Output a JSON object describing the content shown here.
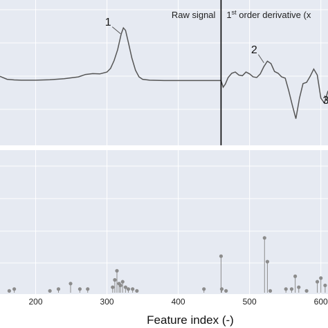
{
  "chart_data": [
    {
      "type": "line",
      "title": "",
      "xlabel": "",
      "ylabel": "",
      "xlim": [
        150,
        610
      ],
      "grid": true,
      "regions": [
        {
          "name": "raw",
          "label": "Raw signal",
          "x_range": [
            150,
            460
          ]
        },
        {
          "name": "derivative",
          "label_prefix": "1",
          "label_sup": "st",
          "label_suffix": " order derivative (x",
          "x_range": [
            460,
            610
          ]
        }
      ],
      "divider_x": 460,
      "series": [
        {
          "x": [
            150,
            160,
            170,
            180,
            200,
            220,
            240,
            260,
            270,
            280,
            290,
            300,
            305,
            310,
            315,
            320,
            323,
            326,
            330,
            335,
            340,
            345,
            350,
            360,
            380,
            400,
            420,
            440,
            460,
            463,
            466,
            470,
            475,
            480,
            485,
            490,
            495,
            500,
            505,
            510,
            515,
            520,
            525,
            530,
            535,
            540,
            545,
            550,
            555,
            560,
            565,
            570,
            575,
            580,
            585,
            590,
            595,
            600,
            605,
            610
          ],
          "y": [
            0.2,
            -0.05,
            -0.1,
            -0.12,
            -0.12,
            -0.08,
            0.0,
            0.15,
            0.35,
            0.42,
            0.4,
            0.55,
            0.85,
            1.5,
            2.4,
            3.7,
            4.2,
            4.0,
            3.0,
            1.7,
            0.7,
            0.15,
            -0.05,
            -0.12,
            -0.15,
            -0.15,
            -0.15,
            -0.15,
            -0.15,
            -0.7,
            -0.45,
            0.1,
            0.45,
            0.55,
            0.3,
            0.25,
            0.55,
            0.4,
            0.15,
            0.1,
            0.4,
            1.0,
            1.45,
            1.25,
            0.6,
            0.45,
            0.15,
            0.05,
            -1.0,
            -2.2,
            -3.3,
            -1.6,
            -0.4,
            -0.3,
            0.2,
            0.8,
            0.3,
            -1.6,
            -2.0,
            -1.0
          ]
        }
      ],
      "annotations": [
        {
          "label": "1",
          "x": 321,
          "y": 3.6
        },
        {
          "label": "2",
          "x": 522,
          "y": 1.2
        },
        {
          "label": "3",
          "x": 607,
          "y": -1.5
        }
      ]
    },
    {
      "type": "scatter",
      "title": "",
      "xlabel": "Feature index (-)",
      "ylabel": "",
      "xlim": [
        150,
        610
      ],
      "ylim": [
        0,
        1
      ],
      "x_ticks": [
        200,
        300,
        400,
        500,
        600
      ],
      "grid": true,
      "style": "stem",
      "points": [
        {
          "x": 163,
          "y": 0.01
        },
        {
          "x": 170,
          "y": 0.02
        },
        {
          "x": 220,
          "y": 0.01
        },
        {
          "x": 232,
          "y": 0.02
        },
        {
          "x": 249,
          "y": 0.05
        },
        {
          "x": 262,
          "y": 0.02
        },
        {
          "x": 273,
          "y": 0.02
        },
        {
          "x": 308,
          "y": 0.03
        },
        {
          "x": 311,
          "y": 0.07
        },
        {
          "x": 314,
          "y": 0.12
        },
        {
          "x": 317,
          "y": 0.05
        },
        {
          "x": 319,
          "y": 0.04
        },
        {
          "x": 322,
          "y": 0.06
        },
        {
          "x": 326,
          "y": 0.03
        },
        {
          "x": 330,
          "y": 0.02
        },
        {
          "x": 336,
          "y": 0.02
        },
        {
          "x": 342,
          "y": 0.01
        },
        {
          "x": 436,
          "y": 0.02
        },
        {
          "x": 460,
          "y": 0.2
        },
        {
          "x": 461,
          "y": 0.02
        },
        {
          "x": 467,
          "y": 0.01
        },
        {
          "x": 521,
          "y": 0.3
        },
        {
          "x": 525,
          "y": 0.17
        },
        {
          "x": 529,
          "y": 0.01
        },
        {
          "x": 551,
          "y": 0.02
        },
        {
          "x": 559,
          "y": 0.02
        },
        {
          "x": 564,
          "y": 0.09
        },
        {
          "x": 569,
          "y": 0.03
        },
        {
          "x": 580,
          "y": 0.01
        },
        {
          "x": 595,
          "y": 0.06
        },
        {
          "x": 600,
          "y": 0.08
        },
        {
          "x": 606,
          "y": 0.04
        }
      ]
    }
  ]
}
